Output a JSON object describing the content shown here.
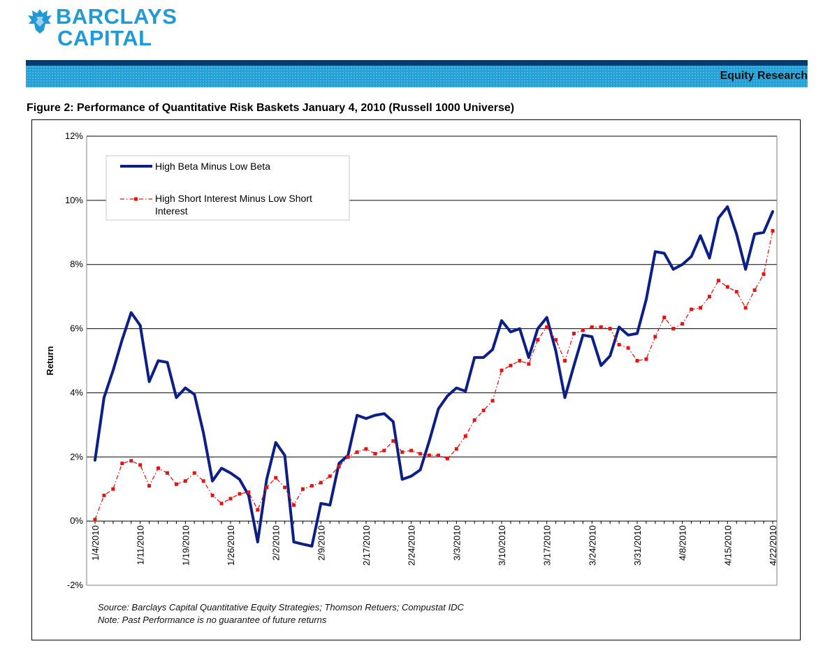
{
  "header": {
    "logo_line1": "BARCLAYS",
    "logo_line2": "CAPITAL",
    "section": "Equity Research"
  },
  "figure_title": "Figure 2:  Performance of Quantitative Risk Baskets January 4, 2010 (Russell 1000 Universe)",
  "footer": {
    "source": "Source: Barclays Capital Quantitative Equity Strategies; Thomson Retuers; Compustat IDC",
    "note": "Note: Past Performance is no guarantee of future returns"
  },
  "colors": {
    "brand": "#1f9ad6",
    "band_dark": "#0a3a6a",
    "series1": "#0c1f86",
    "series2": "#e41414"
  },
  "chart_data": {
    "type": "line",
    "title": "Figure 2:  Performance of Quantitative Risk Baskets January 4, 2010 (Russell 1000 Universe)",
    "xlabel": "",
    "ylabel": "Return",
    "ylim": [
      -2,
      12
    ],
    "yticks": [
      -2,
      0,
      2,
      4,
      6,
      8,
      10,
      12
    ],
    "ytick_labels": [
      "-2%",
      "0%",
      "2%",
      "4%",
      "6%",
      "8%",
      "10%",
      "12%"
    ],
    "grid": "horizontal",
    "legend_position": "top-left",
    "x_labels": [
      {
        "index": 0,
        "label": "1/4/2010"
      },
      {
        "index": 5,
        "label": "1/11/2010"
      },
      {
        "index": 10,
        "label": "1/19/2010"
      },
      {
        "index": 15,
        "label": "1/26/2010"
      },
      {
        "index": 20,
        "label": "2/2/2010"
      },
      {
        "index": 25,
        "label": "2/9/2010"
      },
      {
        "index": 30,
        "label": "2/17/2010"
      },
      {
        "index": 35,
        "label": "2/24/2010"
      },
      {
        "index": 40,
        "label": "3/3/2010"
      },
      {
        "index": 45,
        "label": "3/10/2010"
      },
      {
        "index": 50,
        "label": "3/17/2010"
      },
      {
        "index": 55,
        "label": "3/24/2010"
      },
      {
        "index": 60,
        "label": "3/31/2010"
      },
      {
        "index": 65,
        "label": "4/8/2010"
      },
      {
        "index": 70,
        "label": "4/15/2010"
      },
      {
        "index": 75,
        "label": "4/22/2010"
      }
    ],
    "series": [
      {
        "name": "High Beta Minus Low Beta",
        "style": "solid",
        "values": [
          1.9,
          3.85,
          4.7,
          5.65,
          6.5,
          6.1,
          4.35,
          5.0,
          4.95,
          3.85,
          4.15,
          3.95,
          2.75,
          1.25,
          1.65,
          1.5,
          1.3,
          0.8,
          -0.65,
          1.3,
          2.45,
          2.05,
          -0.65,
          -0.72,
          -0.78,
          0.55,
          0.5,
          1.8,
          2.05,
          3.3,
          3.2,
          3.3,
          3.35,
          3.1,
          1.3,
          1.4,
          1.6,
          2.5,
          3.5,
          3.9,
          4.15,
          4.05,
          5.1,
          5.1,
          5.35,
          6.25,
          5.9,
          6.0,
          5.1,
          6.0,
          6.35,
          5.3,
          3.85,
          4.85,
          5.8,
          5.75,
          4.85,
          5.15,
          6.05,
          5.8,
          5.85,
          6.9,
          8.4,
          8.35,
          7.85,
          8.0,
          8.25,
          8.9,
          8.2,
          9.45,
          9.8,
          8.95,
          7.85,
          8.95,
          9.0,
          9.65
        ]
      },
      {
        "name": "High Short Interest Minus Low Short Interest",
        "style": "dashed",
        "values": [
          0.05,
          0.8,
          1.0,
          1.8,
          1.88,
          1.75,
          1.1,
          1.65,
          1.5,
          1.15,
          1.25,
          1.5,
          1.25,
          0.8,
          0.55,
          0.7,
          0.85,
          0.9,
          0.35,
          1.05,
          1.35,
          1.05,
          0.5,
          1.0,
          1.1,
          1.2,
          1.4,
          1.7,
          2.0,
          2.15,
          2.25,
          2.1,
          2.2,
          2.5,
          2.15,
          2.2,
          2.1,
          2.05,
          2.05,
          1.95,
          2.25,
          2.65,
          3.15,
          3.45,
          3.75,
          4.7,
          4.85,
          5.0,
          4.9,
          5.65,
          6.05,
          5.65,
          5.0,
          5.85,
          5.95,
          6.05,
          6.05,
          6.0,
          5.5,
          5.4,
          5.0,
          5.05,
          5.75,
          6.35,
          6.0,
          6.15,
          6.6,
          6.65,
          7.0,
          7.5,
          7.3,
          7.15,
          6.65,
          7.2,
          7.7,
          9.05
        ]
      }
    ]
  }
}
